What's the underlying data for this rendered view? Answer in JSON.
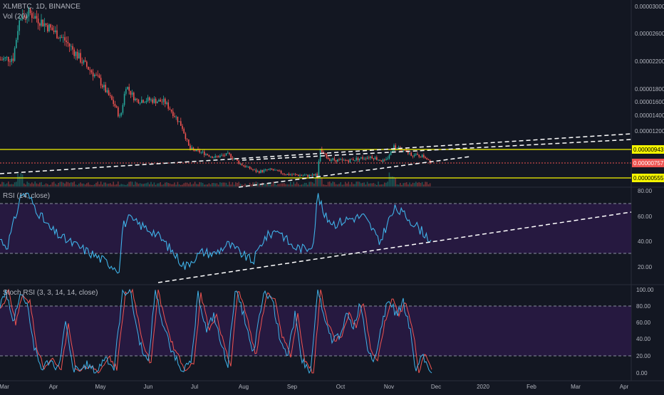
{
  "header": {
    "symbol_line": "XLMBTC, 1D, BINANCE",
    "vol_label": "Vol (20)"
  },
  "colors": {
    "background": "#131722",
    "up": "#26a69a",
    "down": "#ef5350",
    "rsi_line": "#3fb2e8",
    "stoch_k": "#3fb2e8",
    "stoch_d": "#ef5350",
    "level_band": "#2a1a45",
    "yellow": "#f5f500",
    "red_price": "#ef5350",
    "trend": "#ffffff"
  },
  "price_pane": {
    "axis_labels": [
      "0.00003000",
      "0.00002600",
      "0.00002200",
      "0.00001800",
      "0.00001600",
      "0.00001400",
      "0.00001200",
      "0.00000943",
      "0.00000757",
      "0.00000555"
    ],
    "levels": {
      "resistance": "0.00000943",
      "current": "0.00000757",
      "support": "0.00000555"
    }
  },
  "rsi_pane": {
    "label": "RSI (14, close)",
    "axis_labels": [
      "80.00",
      "60.00",
      "40.00",
      "20.00"
    ]
  },
  "stoch_pane": {
    "label": "Stoch RSI (3, 3, 14, 14, close)",
    "axis_labels": [
      "100.00",
      "80.00",
      "60.00",
      "40.00",
      "20.00",
      "0.00"
    ]
  },
  "x_axis": [
    "Mar",
    "Apr",
    "May",
    "Jun",
    "Jul",
    "Aug",
    "Sep",
    "Oct",
    "Nov",
    "Dec",
    "2020",
    "Feb",
    "Mar",
    "Apr"
  ],
  "chart_data": [
    {
      "type": "candlestick",
      "series": [
        {
          "name": "XLMBTC",
          "x": [
            "Mar",
            "Apr",
            "May",
            "Jun",
            "Jul",
            "Aug",
            "Sep",
            "Oct",
            "Nov",
            "Dec"
          ],
          "values": [
            2.22e-05,
            2.9e-05,
            2.22e-05,
            1.6e-05,
            9.5e-06,
            6.2e-06,
            5.8e-06,
            8e-06,
            9.5e-06,
            7.6e-06
          ]
        }
      ],
      "ylim": [
        4.8e-06,
        3e-05
      ]
    },
    {
      "type": "line",
      "series": [
        {
          "name": "RSI",
          "x": [
            "Mar",
            "Apr",
            "May",
            "Jun",
            "Jul",
            "Aug",
            "Sep",
            "Oct",
            "Nov",
            "Dec"
          ],
          "values": [
            42,
            72,
            22,
            55,
            18,
            26,
            30,
            50,
            62,
            38
          ]
        }
      ],
      "ylim": [
        0,
        80
      ]
    },
    {
      "type": "line",
      "series": [
        {
          "name": "Stoch K",
          "x": [
            "Mar",
            "Apr",
            "May",
            "Jun",
            "Jul",
            "Aug",
            "Sep",
            "Oct",
            "Nov",
            "Dec"
          ],
          "values": [
            80,
            15,
            10,
            95,
            20,
            90,
            10,
            60,
            85,
            0
          ]
        },
        {
          "name": "Stoch D",
          "x": [
            "Mar",
            "Apr",
            "May",
            "Jun",
            "Jul",
            "Aug",
            "Sep",
            "Oct",
            "Nov",
            "Dec"
          ],
          "values": [
            75,
            20,
            12,
            90,
            25,
            85,
            15,
            55,
            80,
            5
          ]
        }
      ],
      "ylim": [
        0,
        100
      ]
    }
  ]
}
